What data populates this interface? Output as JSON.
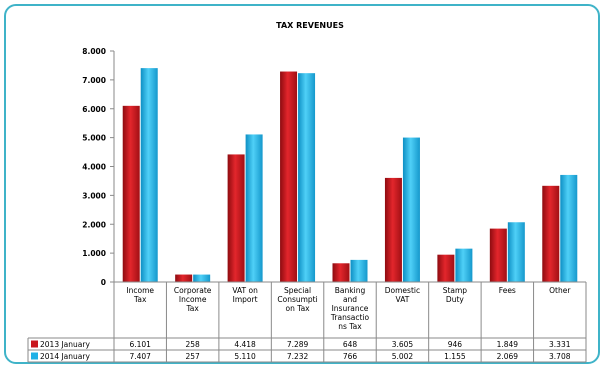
{
  "chart_data": {
    "type": "bar",
    "title": "TAX REVENUES",
    "categories": [
      [
        "Income",
        "Tax"
      ],
      [
        "Corporate",
        "Income",
        "Tax"
      ],
      [
        "VAT on",
        "Import"
      ],
      [
        "Special",
        "Consumpti",
        "on Tax"
      ],
      [
        "Banking",
        "and",
        "Insurance",
        "Transactio",
        "ns Tax"
      ],
      [
        "Domestic",
        "VAT"
      ],
      [
        "Stamp",
        "Duty"
      ],
      [
        "Fees"
      ],
      [
        "Other"
      ]
    ],
    "series": [
      {
        "name": "2013 January",
        "color": "#c8161d",
        "values": [
          6101,
          258,
          4418,
          7289,
          648,
          3605,
          946,
          1849,
          3331
        ],
        "labels": [
          "6.101",
          "258",
          "4.418",
          "7.289",
          "648",
          "3.605",
          "946",
          "1.849",
          "3.331"
        ]
      },
      {
        "name": "2014 January",
        "color": "#1fb0e6",
        "values": [
          7407,
          257,
          5110,
          7232,
          766,
          5002,
          1155,
          2069,
          3708
        ],
        "labels": [
          "7.407",
          "257",
          "5.110",
          "7.232",
          "766",
          "5.002",
          "1.155",
          "2.069",
          "3.708"
        ]
      }
    ],
    "ylim": [
      0,
      8000
    ],
    "yticks": [
      "0",
      "1.000",
      "2.000",
      "3.000",
      "4.000",
      "5.000",
      "6.000",
      "7.000",
      "8.000"
    ],
    "grid": false,
    "legend": "data table"
  }
}
